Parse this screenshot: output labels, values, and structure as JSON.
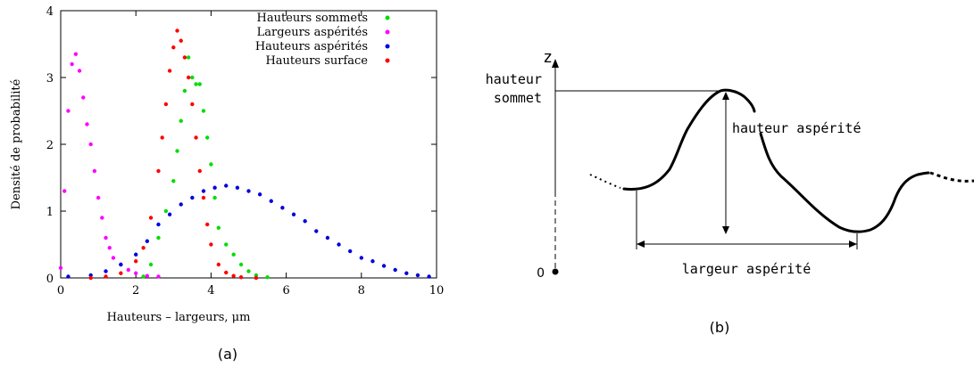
{
  "chart_data": [
    {
      "type": "scatter",
      "xlabel": "Hauteurs – largeurs, μm",
      "ylabel": "Densité de probabilité",
      "xlim": [
        0,
        10
      ],
      "ylim": [
        0,
        4
      ],
      "x_ticks": [
        "0",
        "2",
        "4",
        "6",
        "8",
        "10"
      ],
      "y_ticks": [
        "0",
        "1",
        "2",
        "3",
        "4"
      ],
      "grid": false,
      "legend_position": "top-right",
      "caption": "(a)",
      "series": [
        {
          "name": "Hauteurs sommets",
          "color": "#00dd00",
          "x": [
            2.2,
            2.4,
            2.6,
            2.8,
            3.0,
            3.1,
            3.2,
            3.3,
            3.4,
            3.5,
            3.6,
            3.7,
            3.8,
            3.9,
            4.0,
            4.1,
            4.2,
            4.4,
            4.6,
            4.8,
            5.0,
            5.2,
            5.5
          ],
          "y": [
            0.02,
            0.2,
            0.6,
            1.0,
            1.45,
            1.9,
            2.35,
            2.8,
            3.3,
            3.0,
            2.9,
            2.9,
            2.5,
            2.1,
            1.7,
            1.2,
            0.75,
            0.5,
            0.35,
            0.2,
            0.1,
            0.04,
            0.01
          ]
        },
        {
          "name": "Largeurs aspérités",
          "color": "#ff00ff",
          "x": [
            0.0,
            0.1,
            0.2,
            0.3,
            0.4,
            0.5,
            0.6,
            0.7,
            0.8,
            0.9,
            1.0,
            1.1,
            1.2,
            1.3,
            1.4,
            1.6,
            1.8,
            2.0,
            2.3,
            2.6
          ],
          "y": [
            0.15,
            1.3,
            2.5,
            3.2,
            3.35,
            3.1,
            2.7,
            2.3,
            2.0,
            1.6,
            1.2,
            0.9,
            0.6,
            0.45,
            0.3,
            0.2,
            0.12,
            0.07,
            0.03,
            0.02
          ]
        },
        {
          "name": "Hauteurs aspérités",
          "color": "#0000dd",
          "x": [
            0.2,
            0.8,
            1.2,
            1.6,
            2.0,
            2.3,
            2.6,
            2.9,
            3.2,
            3.5,
            3.8,
            4.1,
            4.4,
            4.7,
            5.0,
            5.3,
            5.6,
            5.9,
            6.2,
            6.5,
            6.8,
            7.1,
            7.4,
            7.7,
            8.0,
            8.3,
            8.6,
            8.9,
            9.2,
            9.5,
            9.8
          ],
          "y": [
            0.02,
            0.04,
            0.1,
            0.2,
            0.35,
            0.55,
            0.8,
            0.95,
            1.1,
            1.2,
            1.3,
            1.35,
            1.38,
            1.35,
            1.3,
            1.25,
            1.15,
            1.05,
            0.95,
            0.85,
            0.7,
            0.6,
            0.5,
            0.4,
            0.3,
            0.25,
            0.18,
            0.12,
            0.07,
            0.04,
            0.02
          ]
        },
        {
          "name": "Hauteurs surface",
          "color": "#ff0000",
          "x": [
            0.8,
            1.2,
            1.6,
            2.0,
            2.2,
            2.4,
            2.6,
            2.7,
            2.8,
            2.9,
            3.0,
            3.1,
            3.2,
            3.3,
            3.4,
            3.5,
            3.6,
            3.7,
            3.8,
            3.9,
            4.0,
            4.2,
            4.4,
            4.6,
            4.8,
            5.2
          ],
          "y": [
            0.0,
            0.02,
            0.07,
            0.25,
            0.45,
            0.9,
            1.6,
            2.1,
            2.6,
            3.1,
            3.45,
            3.7,
            3.55,
            3.3,
            3.0,
            2.6,
            2.1,
            1.6,
            1.2,
            0.8,
            0.5,
            0.2,
            0.08,
            0.03,
            0.01,
            0.0
          ]
        }
      ]
    },
    {
      "type": "diagram",
      "caption": "(b)",
      "labels": {
        "z_axis": "z",
        "origin": "0",
        "hauteur_sommet_line1": "hauteur",
        "hauteur_sommet_line2": "sommet",
        "hauteur_asperite": "hauteur aspérité",
        "largeur_asperite": "largeur aspérité"
      }
    }
  ]
}
